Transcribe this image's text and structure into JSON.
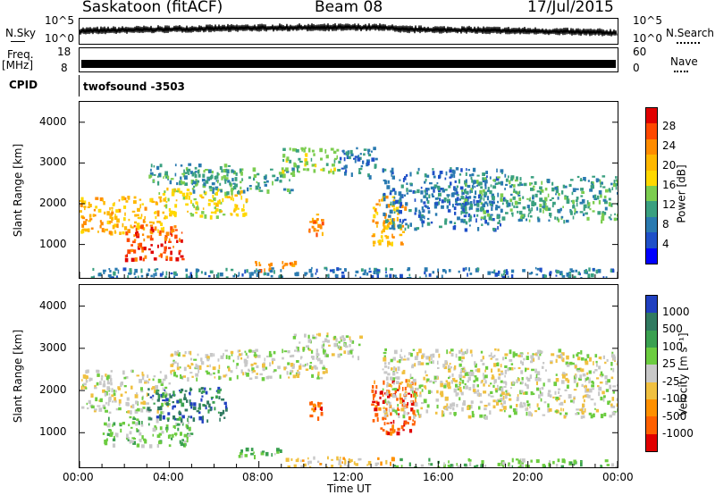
{
  "header": {
    "title": "Saskatoon (fitACF)",
    "beam": "Beam 08",
    "date": "17/Jul/2015"
  },
  "summary": {
    "nsky_label": "N.Sky",
    "nsky_ticks": [
      "10^5",
      "10^0"
    ],
    "nsearch_label": "N.Search",
    "nsearch_ticks": [
      "10^5",
      "10^0"
    ],
    "freq_label": "Freq.",
    "freq_unit": "[MHz]",
    "freq_ticks": [
      "18",
      "8"
    ],
    "nave_label": "Nave",
    "nave_ticks": [
      "60",
      "0"
    ],
    "cpid_label": "CPID",
    "cpid_value": "twofsound -3503"
  },
  "chart_data": [
    {
      "type": "heatmap",
      "panel": "power",
      "ylabel": "Slant Range [km]",
      "colorbar_label": "Power [dB]",
      "ylim": [
        180,
        4500
      ],
      "y_ticks": [
        1000,
        2000,
        3000,
        4000
      ],
      "x_ticks": [
        "00:00",
        "04:00",
        "08:00",
        "12:00",
        "16:00",
        "20:00",
        "00:00"
      ],
      "colorbar_ticks": [
        "28",
        "24",
        "20",
        "16",
        "12",
        "8",
        "4"
      ],
      "colorbar_colors": [
        "#e00000",
        "#ff4800",
        "#ff8c00",
        "#ffb800",
        "#ffd800",
        "#7ccd50",
        "#3aa080",
        "#2a7ab0",
        "#1f50c8",
        "#0000ff"
      ],
      "regions": [
        {
          "t0": 0.0,
          "t1": 3.8,
          "r0": 1300,
          "r1": 2200,
          "level": 3
        },
        {
          "t0": 2.0,
          "t1": 4.6,
          "r0": 650,
          "r1": 1500,
          "level": 1
        },
        {
          "t0": 3.5,
          "t1": 7.5,
          "r0": 1700,
          "r1": 2400,
          "level": 4
        },
        {
          "t0": 3.0,
          "t1": 7.0,
          "r0": 2500,
          "r1": 3000,
          "level": 6
        },
        {
          "t0": 5.0,
          "t1": 9.5,
          "r0": 2300,
          "r1": 2900,
          "level": 6
        },
        {
          "t0": 9.0,
          "t1": 11.5,
          "r0": 2800,
          "r1": 3400,
          "level": 5
        },
        {
          "t0": 11.5,
          "t1": 13.2,
          "r0": 2700,
          "r1": 3400,
          "level": 7
        },
        {
          "t0": 7.8,
          "t1": 9.6,
          "r0": 400,
          "r1": 600,
          "level": 2
        },
        {
          "t0": 10.2,
          "t1": 10.8,
          "r0": 1250,
          "r1": 1800,
          "level": 2
        },
        {
          "t0": 13.0,
          "t1": 14.5,
          "r0": 1000,
          "r1": 2200,
          "level": 3
        },
        {
          "t0": 13.5,
          "t1": 19.0,
          "r0": 1400,
          "r1": 2900,
          "level": 7
        },
        {
          "t0": 17.0,
          "t1": 24.0,
          "r0": 1600,
          "r1": 2700,
          "level": 6
        },
        {
          "t0": 0.5,
          "t1": 24.0,
          "r0": 200,
          "r1": 450,
          "level": 7
        }
      ]
    },
    {
      "type": "heatmap",
      "panel": "velocity",
      "ylabel": "Slant Range [km]",
      "xlabel": "Time UT",
      "colorbar_label": "Velocity [m s⁻¹]",
      "ylim": [
        180,
        4500
      ],
      "y_ticks": [
        1000,
        2000,
        3000,
        4000
      ],
      "x_ticks": [
        "00:00",
        "04:00",
        "08:00",
        "12:00",
        "16:00",
        "20:00",
        "00:00"
      ],
      "colorbar_ticks": [
        "1000",
        "500",
        "100",
        "25",
        "-25",
        "-100",
        "-500",
        "-1000"
      ],
      "colorbar_colors": [
        "#2040c0",
        "#307a60",
        "#3aa050",
        "#6ccc40",
        "#c8c8c8",
        "#f0c040",
        "#ff9000",
        "#ff6000",
        "#e00000"
      ],
      "regions": [
        {
          "t0": 0.0,
          "t1": 4.0,
          "r0": 1500,
          "r1": 2500,
          "level": 4
        },
        {
          "t0": 1.0,
          "t1": 5.0,
          "r0": 700,
          "r1": 1400,
          "level": 3
        },
        {
          "t0": 3.0,
          "t1": 6.5,
          "r0": 1300,
          "r1": 2100,
          "level": 1
        },
        {
          "t0": 4.0,
          "t1": 11.0,
          "r0": 2300,
          "r1": 3000,
          "level": 4
        },
        {
          "t0": 9.5,
          "t1": 12.5,
          "r0": 2800,
          "r1": 3400,
          "level": 4
        },
        {
          "t0": 7.0,
          "t1": 9.0,
          "r0": 450,
          "r1": 650,
          "level": 3
        },
        {
          "t0": 10.2,
          "t1": 10.8,
          "r0": 1250,
          "r1": 1800,
          "level": 7
        },
        {
          "t0": 13.0,
          "t1": 15.0,
          "r0": 1000,
          "r1": 2300,
          "level": 7
        },
        {
          "t0": 13.5,
          "t1": 24.0,
          "r0": 1400,
          "r1": 3000,
          "level": 4
        },
        {
          "t0": 9.0,
          "t1": 14.0,
          "r0": 200,
          "r1": 450,
          "level": 5
        },
        {
          "t0": 14.0,
          "t1": 24.0,
          "r0": 200,
          "r1": 400,
          "level": 3
        }
      ]
    }
  ]
}
